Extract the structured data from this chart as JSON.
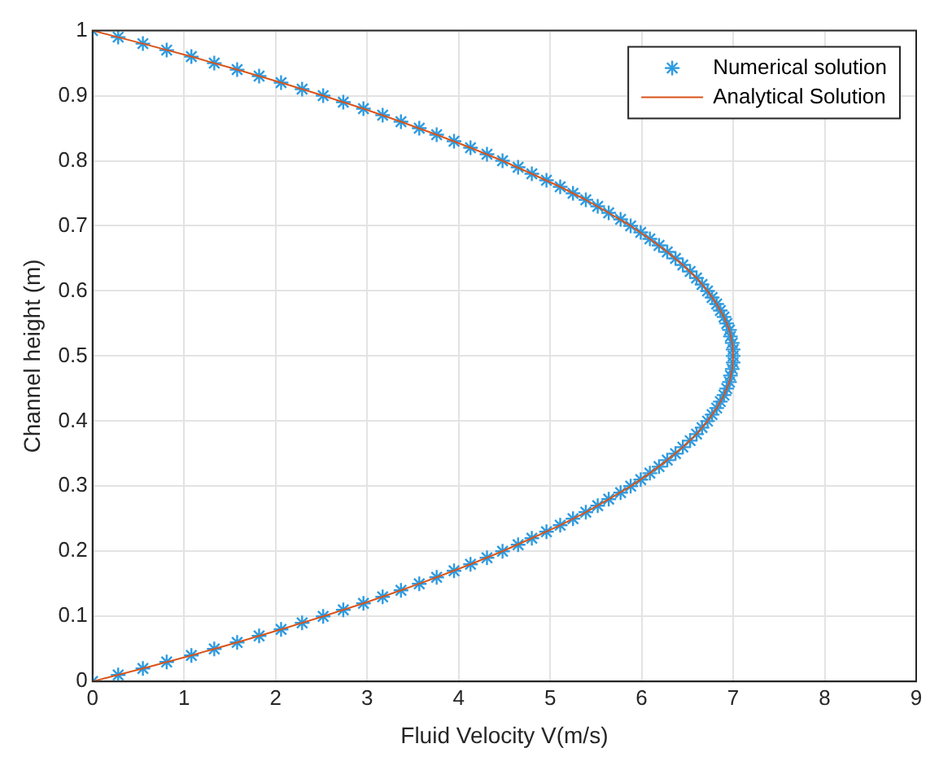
{
  "chart_data": {
    "type": "scatter",
    "xlabel": "Fluid Velocity V(m/s)",
    "ylabel": "Channel height (m)",
    "xlim": [
      0,
      9
    ],
    "xticks": [
      0,
      1,
      2,
      3,
      4,
      5,
      6,
      7,
      8,
      9
    ],
    "ylim": [
      0,
      1
    ],
    "yticks": [
      0,
      0.1,
      0.2,
      0.3,
      0.4,
      0.5,
      0.6,
      0.7,
      0.8,
      0.9,
      1
    ],
    "grid": true,
    "legend": "top right",
    "series": [
      {
        "name": "Numerical solution",
        "type": "scatter",
        "marker": "cross",
        "color": "#2e9be0",
        "x": [
          0,
          0.28,
          0.55,
          0.81,
          1.08,
          1.33,
          1.58,
          1.82,
          2.06,
          2.29,
          2.52,
          2.74,
          2.96,
          3.17,
          3.37,
          3.57,
          3.76,
          3.95,
          4.13,
          4.31,
          4.48,
          4.65,
          4.8,
          4.96,
          5.11,
          5.25,
          5.39,
          5.52,
          5.64,
          5.77,
          5.88,
          5.99,
          6.09,
          6.19,
          6.28,
          6.37,
          6.45,
          6.53,
          6.6,
          6.66,
          6.72,
          6.77,
          6.82,
          6.86,
          6.9,
          6.93,
          6.96,
          6.97,
          6.99,
          7,
          7,
          7,
          6.99,
          6.97,
          6.96,
          6.93,
          6.9,
          6.86,
          6.82,
          6.77,
          6.72,
          6.66,
          6.6,
          6.53,
          6.45,
          6.37,
          6.28,
          6.19,
          6.09,
          5.99,
          5.88,
          5.77,
          5.64,
          5.52,
          5.39,
          5.25,
          5.11,
          4.96,
          4.8,
          4.65,
          4.48,
          4.31,
          4.13,
          3.95,
          3.76,
          3.57,
          3.37,
          3.17,
          2.96,
          2.74,
          2.52,
          2.29,
          2.06,
          1.82,
          1.58,
          1.33,
          1.08,
          0.81,
          0.55,
          0.28,
          0
        ],
        "values": [
          0,
          0.01,
          0.02,
          0.03,
          0.04,
          0.05,
          0.06,
          0.07,
          0.08,
          0.09,
          0.1,
          0.11,
          0.12,
          0.13,
          0.14,
          0.15,
          0.16,
          0.17,
          0.18,
          0.19,
          0.2,
          0.21,
          0.22,
          0.23,
          0.24,
          0.25,
          0.26,
          0.27,
          0.28,
          0.29,
          0.3,
          0.31,
          0.32,
          0.33,
          0.34,
          0.35,
          0.36,
          0.37,
          0.38,
          0.39,
          0.4,
          0.41,
          0.42,
          0.43,
          0.44,
          0.45,
          0.46,
          0.47,
          0.48,
          0.49,
          0.5,
          0.51,
          0.52,
          0.53,
          0.54,
          0.55,
          0.56,
          0.57,
          0.58,
          0.59,
          0.6,
          0.61,
          0.62,
          0.63,
          0.64,
          0.65,
          0.66,
          0.67,
          0.68,
          0.69,
          0.7,
          0.71,
          0.72,
          0.73,
          0.74,
          0.75,
          0.76,
          0.77,
          0.78,
          0.79,
          0.8,
          0.81,
          0.82,
          0.83,
          0.84,
          0.85,
          0.86,
          0.87,
          0.88,
          0.89,
          0.9,
          0.91,
          0.92,
          0.93,
          0.94,
          0.95,
          0.96,
          0.97,
          0.98,
          0.99,
          1
        ]
      },
      {
        "name": "Analytical Solution",
        "type": "line",
        "marker": "none",
        "line_style": "solid",
        "color": "#d95319",
        "x": [
          0,
          0.55,
          1.08,
          1.58,
          2.06,
          2.52,
          2.96,
          3.37,
          3.76,
          4.13,
          4.48,
          4.8,
          5.11,
          5.39,
          5.64,
          5.88,
          6.09,
          6.28,
          6.45,
          6.6,
          6.72,
          6.82,
          6.9,
          6.96,
          6.99,
          7,
          6.99,
          6.96,
          6.9,
          6.82,
          6.72,
          6.6,
          6.45,
          6.28,
          6.09,
          5.88,
          5.64,
          5.39,
          5.11,
          4.8,
          4.48,
          4.13,
          3.76,
          3.37,
          2.96,
          2.52,
          2.06,
          1.58,
          1.08,
          0.55,
          0
        ],
        "values": [
          0,
          0.02,
          0.04,
          0.06,
          0.08,
          0.1,
          0.12,
          0.14,
          0.16,
          0.18,
          0.2,
          0.22,
          0.24,
          0.26,
          0.28,
          0.3,
          0.32,
          0.34,
          0.36,
          0.38,
          0.4,
          0.42,
          0.44,
          0.46,
          0.48,
          0.5,
          0.52,
          0.54,
          0.56,
          0.58,
          0.6,
          0.62,
          0.64,
          0.66,
          0.68,
          0.7,
          0.72,
          0.74,
          0.76,
          0.78,
          0.8,
          0.82,
          0.84,
          0.86,
          0.88,
          0.9,
          0.92,
          0.94,
          0.96,
          0.98,
          1
        ]
      }
    ]
  }
}
